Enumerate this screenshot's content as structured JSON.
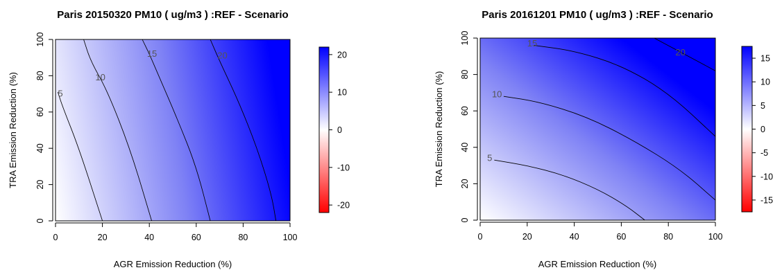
{
  "chart_data": [
    {
      "type": "heatmap",
      "title": "Paris 20150320 PM10 ( ug/m3 ) :REF - Scenario",
      "xlabel": "AGR Emission Reduction (%)",
      "ylabel": "TRA Emission Reduction (%)",
      "xlim": [
        0,
        100
      ],
      "ylim": [
        0,
        100
      ],
      "x_ticks": [
        0,
        20,
        40,
        60,
        80,
        100
      ],
      "y_ticks": [
        0,
        20,
        40,
        60,
        80,
        100
      ],
      "colorbar": {
        "min": -22,
        "max": 22,
        "ticks": [
          20,
          10,
          0,
          -10,
          -20
        ],
        "low_color": "#ff0000",
        "mid_color": "#ffffff",
        "high_color": "#0000ff"
      },
      "contours": [
        {
          "level": 5,
          "label": "5",
          "label_at": [
            1,
            70
          ],
          "points": [
            [
              1,
              71
            ],
            [
              3,
              63
            ],
            [
              10,
              40
            ],
            [
              20,
              0
            ]
          ]
        },
        {
          "level": 10,
          "label": "10",
          "label_at": [
            17,
            79
          ],
          "points": [
            [
              12,
              100
            ],
            [
              15,
              88
            ],
            [
              22,
              72
            ],
            [
              32,
              39
            ],
            [
              41,
              0
            ]
          ]
        },
        {
          "level": 15,
          "label": "15",
          "label_at": [
            39,
            92
          ],
          "points": [
            [
              37,
              100
            ],
            [
              40,
              92
            ],
            [
              44,
              80
            ],
            [
              52,
              56
            ],
            [
              60,
              30
            ],
            [
              66,
              0
            ]
          ]
        },
        {
          "level": 20,
          "label": "20",
          "label_at": [
            69,
            91
          ],
          "points": [
            [
              66,
              100
            ],
            [
              70,
              88
            ],
            [
              78,
              66
            ],
            [
              86,
              40
            ],
            [
              92,
              15
            ],
            [
              94,
              0
            ]
          ]
        }
      ]
    },
    {
      "type": "heatmap",
      "title": "Paris 20161201 PM10 ( ug/m3 ) :REF - Scenario",
      "xlabel": "AGR Emission Reduction (%)",
      "ylabel": "TRA Emission Reduction (%)",
      "xlim": [
        0,
        100
      ],
      "ylim": [
        0,
        100
      ],
      "x_ticks": [
        0,
        20,
        40,
        60,
        80,
        100
      ],
      "y_ticks": [
        0,
        20,
        40,
        60,
        80,
        100
      ],
      "colorbar": {
        "min": -17.5,
        "max": 17.5,
        "ticks": [
          15,
          10,
          5,
          0,
          -5,
          -10,
          -15
        ],
        "low_color": "#ff0000",
        "mid_color": "#ffffff",
        "high_color": "#0000ff"
      },
      "contours": [
        {
          "level": 5,
          "label": "5",
          "label_at": [
            3,
            34
          ],
          "points": [
            [
              6,
              33
            ],
            [
              20,
              30
            ],
            [
              35,
              25
            ],
            [
              50,
              17
            ],
            [
              62,
              8
            ],
            [
              70,
              0
            ]
          ]
        },
        {
          "level": 10,
          "label": "10",
          "label_at": [
            5,
            69
          ],
          "points": [
            [
              10,
              68
            ],
            [
              25,
              65
            ],
            [
              45,
              57
            ],
            [
              65,
              44
            ],
            [
              85,
              28
            ],
            [
              100,
              11
            ]
          ]
        },
        {
          "level": 15,
          "label": "15",
          "label_at": [
            20,
            97
          ],
          "points": [
            [
              23,
              96
            ],
            [
              40,
              93
            ],
            [
              60,
              85
            ],
            [
              80,
              70
            ],
            [
              100,
              46
            ]
          ]
        },
        {
          "level": 20,
          "label": "20",
          "label_at": [
            83,
            92
          ],
          "points": [
            [
              74,
              100
            ],
            [
              90,
              89
            ],
            [
              100,
              82
            ]
          ]
        }
      ]
    }
  ]
}
